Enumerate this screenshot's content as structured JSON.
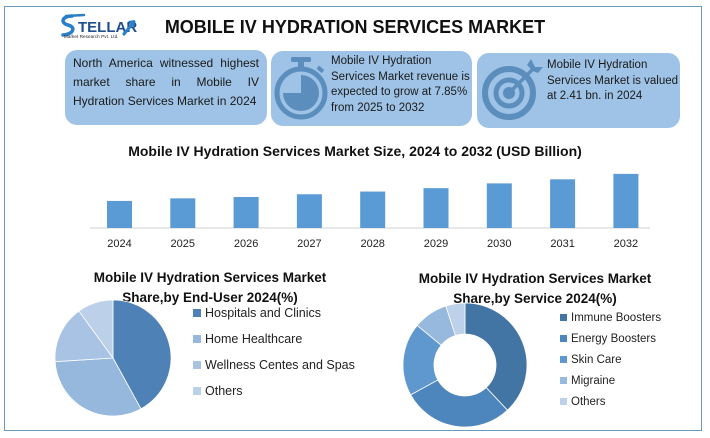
{
  "header": {
    "brand_name": "STELLAR",
    "brand_subtitle": "Market Research Pvt. Ltd.",
    "title": "MOBILE IV HYDRATION SERVICES MARKET"
  },
  "cards": [
    {
      "icon": "globe-region-icon",
      "text": "North America witnessed highest market share in Mobile IV Hydration Services Market in 2024"
    },
    {
      "icon": "stopwatch-icon",
      "text": "Mobile IV Hydration Services Market revenue is expected to grow at 7.85% from 2025 to 2032"
    },
    {
      "icon": "target-icon",
      "text": "Mobile IV Hydration Services Market is valued at 2.41 bn. in 2024"
    }
  ],
  "colors": {
    "frame": "#6a9bbd",
    "card_bg": "#9ec3e6",
    "card_icon": "#5b8dbd",
    "bar": "#5b9bd5",
    "axis": "#d0d0d0"
  },
  "chart_data": [
    {
      "type": "bar",
      "title": "Mobile IV Hydration Services Market Size, 2024 to 2032 (USD Billion)",
      "categories": [
        "2024",
        "2025",
        "2026",
        "2027",
        "2028",
        "2029",
        "2030",
        "2031",
        "2032"
      ],
      "values": [
        2.41,
        2.6,
        2.7,
        2.9,
        3.1,
        3.35,
        3.7,
        4.0,
        4.4
      ],
      "xlabel": "",
      "ylabel": "",
      "ylim": [
        0.42,
        5.0
      ],
      "grid": false,
      "legend": "none",
      "color": "#5b9bd5"
    },
    {
      "type": "pie",
      "title": "Mobile IV Hydration Services Market Share,by End-User 2024(%)",
      "title_lines": [
        "Mobile IV Hydration Services Market",
        "Share,by End-User 2024(%)"
      ],
      "labels": [
        "Hospitals and Clinics",
        "Home Healthcare",
        "Wellness Centes and Spas",
        "Others"
      ],
      "values": [
        42,
        32,
        16,
        10
      ],
      "colors": [
        "#4e81b5",
        "#97b8dd",
        "#a9c3e4",
        "#bdd0ea"
      ],
      "legend": "right"
    },
    {
      "type": "pie",
      "donut": true,
      "title": "Mobile IV Hydration Services Market Share,by Service 2024(%)",
      "title_lines": [
        "Mobile IV Hydration Services Market",
        "Share,by Service 2024(%)"
      ],
      "labels": [
        "Immune Boosters",
        "Energy Boosters",
        "Skin Care",
        "Migraine",
        "Others"
      ],
      "values": [
        38,
        29,
        19,
        9,
        5
      ],
      "colors": [
        "#4275a3",
        "#4d86bd",
        "#5e98cf",
        "#98b9de",
        "#bed1ea"
      ],
      "legend": "right"
    }
  ]
}
